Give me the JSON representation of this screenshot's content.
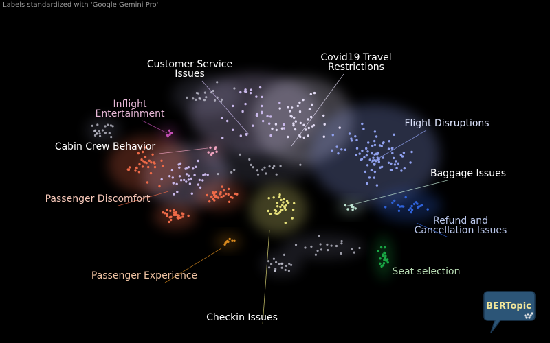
{
  "header": {
    "note": "Labels standardized with 'Google Gemini Pro'"
  },
  "logo": {
    "text": "BERTopic"
  },
  "colors": {
    "background": "#000000",
    "frame": "#5a5a5a",
    "logo_bg": "#2c5577"
  },
  "chart_data": {
    "type": "scatter",
    "title": "",
    "xlabel": "",
    "ylabel": "",
    "grid": false,
    "legend": "none",
    "topics": [
      {
        "name": "Customer Service Issues",
        "lines": [
          "Customer Service",
          "Issues"
        ],
        "color": "#c9b8ea",
        "label_color": "#ffffff"
      },
      {
        "name": "Covid19 Travel Restrictions",
        "lines": [
          "Covid19 Travel",
          "Restrictions"
        ],
        "color": "#e3dcf4",
        "label_color": "#ffffff"
      },
      {
        "name": "Inflight Entertainment",
        "lines": [
          "Inflight",
          "Entertainment"
        ],
        "color": "#c44fb6",
        "label_color": "#e7b8d7"
      },
      {
        "name": "Flight Disruptions",
        "lines": [
          "Flight Disruptions"
        ],
        "color": "#8fa0ee",
        "label_color": "#dfe6ff"
      },
      {
        "name": "Cabin Crew Behavior",
        "lines": [
          "Cabin Crew Behavior"
        ],
        "color": "#f0a3bf",
        "label_color": "#ffffff"
      },
      {
        "name": "Baggage Issues",
        "lines": [
          "Baggage Issues"
        ],
        "color": "#bfe4d2",
        "label_color": "#ffffff"
      },
      {
        "name": "Passenger Discomfort",
        "lines": [
          "Passenger Discomfort"
        ],
        "color": "#ee6a48",
        "label_color": "#f6c7b8"
      },
      {
        "name": "Refund and Cancellation Issues",
        "lines": [
          "Refund and",
          "Cancellation Issues"
        ],
        "color": "#2f62d8",
        "label_color": "#b9c6ea"
      },
      {
        "name": "Seat selection",
        "lines": [
          "Seat selection"
        ],
        "color": "#1aa845",
        "label_color": "#b7dab2"
      },
      {
        "name": "Passenger Experience",
        "lines": [
          "Passenger Experience"
        ],
        "color": "#d98a1e",
        "label_color": "#ecc0a0"
      },
      {
        "name": "Checkin Issues",
        "lines": [
          "Checkin Issues"
        ],
        "color": "#e6e07a",
        "label_color": "#ffffff"
      }
    ]
  }
}
